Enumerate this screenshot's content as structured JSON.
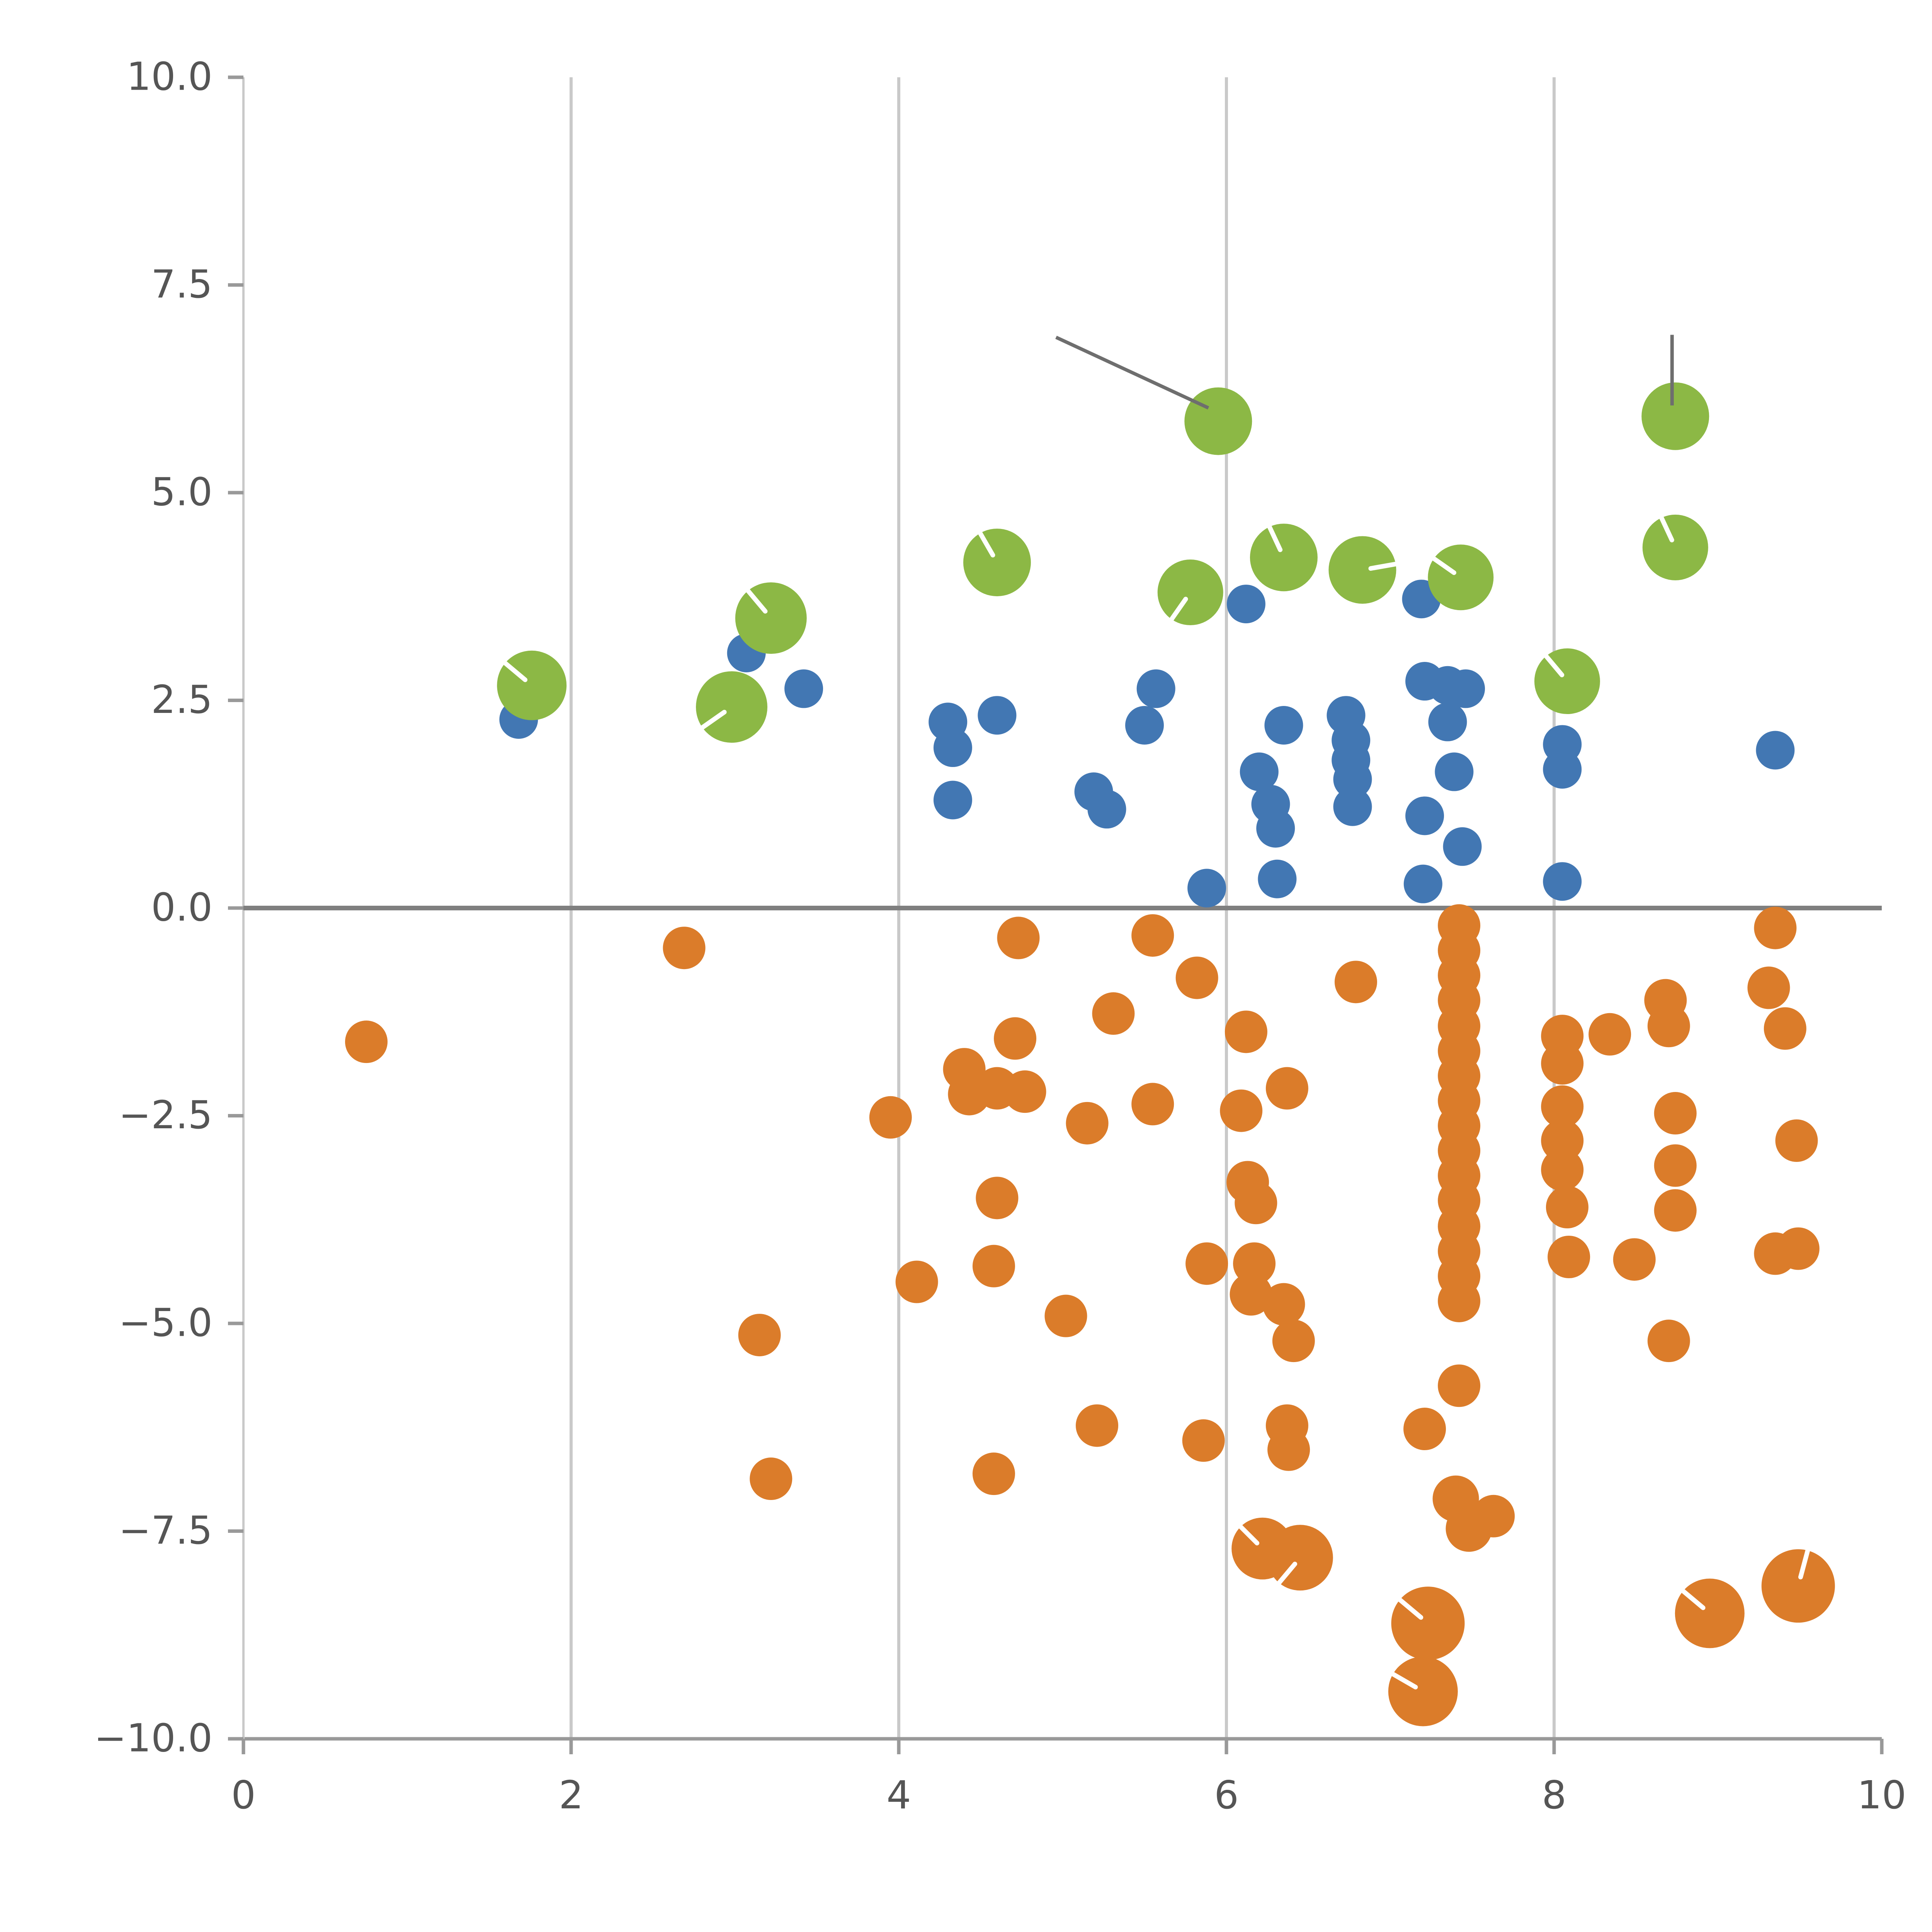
{
  "chart_data": {
    "type": "scatter",
    "title": "",
    "xlabel": "",
    "ylabel": "",
    "xlim": [
      0,
      10
    ],
    "ylim": [
      -10,
      10
    ],
    "x_ticks": [
      0,
      2,
      4,
      6,
      8,
      10
    ],
    "x_tick_labels": [
      "0",
      "2",
      "4",
      "6",
      "8",
      "10"
    ],
    "y_ticks": [
      -10,
      -7.5,
      -5,
      -2.5,
      0,
      2.5,
      5,
      7.5,
      10
    ],
    "y_tick_labels": [
      "−10.0",
      "−7.5",
      "−5.0",
      "−2.5",
      "0.0",
      "2.5",
      "5.0",
      "7.5",
      "10.0"
    ],
    "grid": {
      "vertical_x": [
        2,
        4,
        6,
        8
      ],
      "horizontal_y": []
    },
    "zero_line_y": 0,
    "legend": null,
    "colors": {
      "green": "#8CB845",
      "blue": "#4277B3",
      "orange": "#DB7C2A",
      "grid": "#c9c9c9",
      "zero_line": "#7f7f7f",
      "axis": "#999999",
      "tick_label": "#555555",
      "annotation": "#6e6e6e",
      "highlight": "#ffffff"
    },
    "series": [
      {
        "name": "orange",
        "color_key": "orange",
        "default_radius": 11,
        "points": [
          [
            0.75,
            -1.61
          ],
          [
            2.69,
            -0.48
          ],
          [
            3.15,
            -5.14
          ],
          [
            3.22,
            -6.87
          ],
          [
            3.95,
            -2.52
          ],
          [
            4.11,
            -4.5
          ],
          [
            4.4,
            -1.94
          ],
          [
            4.43,
            -2.24
          ],
          [
            4.6,
            -2.17
          ],
          [
            4.58,
            -4.31
          ],
          [
            4.6,
            -3.49
          ],
          [
            4.71,
            -1.57
          ],
          [
            4.73,
            -0.36
          ],
          [
            4.77,
            -2.21
          ],
          [
            4.58,
            -6.81
          ],
          [
            5.02,
            -4.91
          ],
          [
            5.15,
            -2.59
          ],
          [
            5.21,
            -6.23
          ],
          [
            5.31,
            -1.27
          ],
          [
            5.55,
            -0.33
          ],
          [
            5.55,
            -2.36
          ],
          [
            5.82,
            -0.84
          ],
          [
            5.88,
            -4.28
          ],
          [
            5.86,
            -6.41
          ],
          [
            6.12,
            -1.49
          ],
          [
            6.09,
            -2.44
          ],
          [
            6.13,
            -3.3
          ],
          [
            6.18,
            -3.55
          ],
          [
            6.17,
            -4.28
          ],
          [
            6.15,
            -4.65
          ],
          [
            6.37,
            -2.17
          ],
          [
            6.35,
            -4.77
          ],
          [
            6.41,
            -5.21
          ],
          [
            6.37,
            -6.23
          ],
          [
            6.38,
            -6.52
          ],
          [
            6.22,
            -7.71,
            16,
            135
          ],
          [
            6.45,
            -7.82,
            17,
            230
          ],
          [
            6.79,
            -0.89
          ],
          [
            7.21,
            -6.27
          ],
          [
            7.23,
            -8.61,
            19,
            140
          ],
          [
            7.2,
            -9.43,
            18,
            150
          ],
          [
            7.42,
            -0.21
          ],
          [
            7.42,
            -0.51
          ],
          [
            7.42,
            -0.81
          ],
          [
            7.42,
            -1.11
          ],
          [
            7.42,
            -1.42
          ],
          [
            7.42,
            -1.72
          ],
          [
            7.42,
            -2.02
          ],
          [
            7.42,
            -2.32
          ],
          [
            7.42,
            -2.62
          ],
          [
            7.42,
            -2.92
          ],
          [
            7.42,
            -3.22
          ],
          [
            7.42,
            -3.52
          ],
          [
            7.42,
            -3.83
          ],
          [
            7.42,
            -4.13
          ],
          [
            7.42,
            -4.43
          ],
          [
            7.42,
            -4.73
          ],
          [
            7.42,
            -5.75
          ],
          [
            7.4,
            -7.11,
            12
          ],
          [
            7.48,
            -7.47,
            12
          ],
          [
            7.63,
            -7.32
          ],
          [
            8.05,
            -1.54
          ],
          [
            8.05,
            -1.87
          ],
          [
            8.05,
            -2.39
          ],
          [
            8.05,
            -2.8
          ],
          [
            8.05,
            -3.15
          ],
          [
            8.08,
            -3.6
          ],
          [
            8.09,
            -4.2
          ],
          [
            8.34,
            -1.52
          ],
          [
            8.49,
            -4.23
          ],
          [
            8.68,
            -1.11
          ],
          [
            8.7,
            -1.42
          ],
          [
            8.74,
            -2.47
          ],
          [
            8.74,
            -3.1
          ],
          [
            8.74,
            -3.64
          ],
          [
            8.7,
            -5.21
          ],
          [
            8.95,
            -8.49,
            18,
            140
          ],
          [
            9.31,
            -0.96
          ],
          [
            9.35,
            -0.24
          ],
          [
            9.41,
            -1.45
          ],
          [
            9.48,
            -2.8
          ],
          [
            9.35,
            -4.16
          ],
          [
            9.49,
            -4.1
          ],
          [
            9.49,
            -8.16,
            19,
            75
          ]
        ]
      },
      {
        "name": "blue",
        "color_key": "blue",
        "default_radius": 10,
        "points": [
          [
            1.68,
            2.27
          ],
          [
            3.07,
            3.07
          ],
          [
            3.42,
            2.64
          ],
          [
            4.3,
            2.24
          ],
          [
            4.33,
            1.93
          ],
          [
            4.33,
            1.3
          ],
          [
            4.6,
            2.32
          ],
          [
            5.19,
            1.4
          ],
          [
            5.27,
            1.19
          ],
          [
            5.5,
            2.2
          ],
          [
            5.57,
            2.64
          ],
          [
            5.88,
            0.24
          ],
          [
            6.12,
            3.66
          ],
          [
            6.2,
            1.64
          ],
          [
            6.27,
            1.25
          ],
          [
            6.3,
            0.96
          ],
          [
            6.35,
            2.2
          ],
          [
            6.31,
            0.35
          ],
          [
            6.73,
            2.32
          ],
          [
            6.76,
            2.02
          ],
          [
            6.76,
            1.78
          ],
          [
            6.77,
            1.55
          ],
          [
            6.77,
            1.22
          ],
          [
            7.19,
            3.72
          ],
          [
            7.21,
            2.73
          ],
          [
            7.21,
            1.11
          ],
          [
            7.2,
            0.29
          ],
          [
            7.35,
            2.68
          ],
          [
            7.35,
            2.24
          ],
          [
            7.39,
            1.64
          ],
          [
            7.46,
            2.64
          ],
          [
            7.44,
            0.74
          ],
          [
            8.05,
            2.6
          ],
          [
            8.05,
            1.97
          ],
          [
            8.05,
            1.67
          ],
          [
            8.05,
            0.32
          ],
          [
            9.35,
            1.9
          ]
        ]
      },
      {
        "name": "green",
        "color_key": "green",
        "default_radius": 17.5,
        "points": [
          [
            1.76,
            2.68,
            18,
            140
          ],
          [
            2.98,
            2.42,
            18.5,
            215
          ],
          [
            3.22,
            3.49,
            18.5,
            130
          ],
          [
            4.6,
            4.16,
            17.5,
            120
          ],
          [
            5.78,
            3.8,
            17,
            235
          ],
          [
            5.95,
            5.86,
            17.5
          ],
          [
            6.35,
            4.22,
            17.5,
            115
          ],
          [
            6.83,
            4.07,
            17.5,
            10
          ],
          [
            7.43,
            3.98,
            17,
            145
          ],
          [
            8.08,
            2.73,
            17,
            130
          ],
          [
            8.74,
            4.34,
            17,
            115
          ],
          [
            8.74,
            5.92,
            17.5
          ]
        ]
      }
    ],
    "annotations": [
      {
        "type": "line",
        "x1": 4.96,
        "y1": 6.87,
        "x2": 5.89,
        "y2": 6.02
      },
      {
        "type": "line",
        "x1": 8.72,
        "y1": 6.9,
        "x2": 8.72,
        "y2": 6.05
      }
    ]
  }
}
